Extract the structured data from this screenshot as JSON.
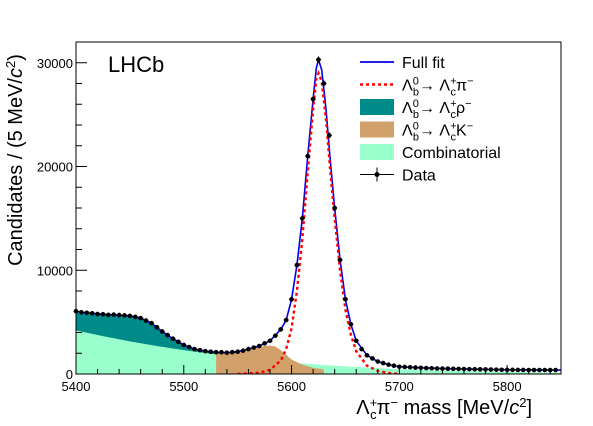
{
  "chart_data": {
    "type": "line",
    "title": "",
    "watermark": "LHCb",
    "xlabel": {
      "particle": "Λ",
      "particle_sup": "+",
      "particle_sub": "c",
      "pion": "π",
      "pion_sup": "−",
      "text": " mass [MeV/",
      "c": "c",
      "c_sup": "2",
      "close": "]"
    },
    "ylabel": {
      "text": "Candidates / (5 MeV/",
      "c": "c",
      "c_sup": "2",
      "close": ")"
    },
    "xlim": [
      5400,
      5850
    ],
    "ylim": [
      0,
      32000
    ],
    "x_ticks": [
      5400,
      5500,
      5600,
      5700,
      5800
    ],
    "y_ticks": [
      0,
      10000,
      20000,
      30000
    ],
    "x_tick_labels": [
      "5400",
      "5500",
      "5600",
      "5700",
      "5800"
    ],
    "y_tick_labels": [
      "0",
      "10000",
      "20000",
      "30000"
    ],
    "legend_position": "top-right",
    "legend": [
      {
        "id": "fullfit",
        "style": "line",
        "color": "#0000ee",
        "html": "Full fit"
      },
      {
        "id": "signal",
        "style": "dashed",
        "color": "#ff0000",
        "html": "Λ<tspan dy='-6' font-size='11'>0</tspan><tspan dx='-6' dy='11' font-size='11'>b</tspan><tspan dy='-5'>→ Λ</tspan><tspan dy='-6' font-size='11'>+</tspan><tspan dx='-6' dy='11' font-size='11'>c</tspan><tspan dy='-5'>π</tspan><tspan dy='-6' font-size='11'>−</tspan>"
      },
      {
        "id": "rho",
        "style": "box",
        "color": "#008b8b",
        "html": "Λ<tspan dy='-6' font-size='11'>0</tspan><tspan dx='-6' dy='11' font-size='11'>b</tspan><tspan dy='-5'>→ Λ</tspan><tspan dy='-6' font-size='11'>+</tspan><tspan dx='-6' dy='11' font-size='11'>c</tspan><tspan dy='-5'>ρ</tspan><tspan dy='-6' font-size='11'>−</tspan>"
      },
      {
        "id": "kaon",
        "style": "box",
        "color": "#d2a06a",
        "html": "Λ<tspan dy='-6' font-size='11'>0</tspan><tspan dx='-6' dy='11' font-size='11'>b</tspan><tspan dy='-5'>→ Λ</tspan><tspan dy='-6' font-size='11'>+</tspan><tspan dx='-6' dy='11' font-size='11'>c</tspan><tspan dy='-5'>K</tspan><tspan dy='-6' font-size='11'>−</tspan>"
      },
      {
        "id": "comb",
        "style": "box",
        "color": "#99ffcc",
        "html": "Combinatorial"
      },
      {
        "id": "data",
        "style": "marker",
        "color": "#000000",
        "html": "Data"
      }
    ],
    "series": [
      {
        "id": "combinatorial",
        "type": "area",
        "color": "#99ffcc",
        "x": [
          5400,
          5425,
          5450,
          5475,
          5500,
          5525,
          5550,
          5575,
          5600,
          5625,
          5650,
          5675,
          5700,
          5750,
          5800,
          5850
        ],
        "y": [
          4200,
          3650,
          3150,
          2700,
          2300,
          1950,
          1620,
          1340,
          1100,
          900,
          730,
          590,
          470,
          300,
          190,
          120
        ]
      },
      {
        "id": "rho_total",
        "type": "area",
        "color": "#008b8b",
        "x": [
          5400,
          5410,
          5420,
          5430,
          5440,
          5450,
          5460,
          5470,
          5480,
          5490,
          5500,
          5510,
          5520,
          5530,
          5540,
          5550
        ],
        "y": [
          5950,
          5900,
          5800,
          5720,
          5680,
          5600,
          5400,
          4900,
          4100,
          3400,
          2800,
          2400,
          2200,
          2050,
          1950,
          1800
        ]
      },
      {
        "id": "kaon_total",
        "type": "area",
        "color": "#d2a06a",
        "x": [
          5530,
          5540,
          5550,
          5560,
          5570,
          5575,
          5580,
          5585,
          5590,
          5595,
          5600,
          5610,
          5620,
          5630
        ],
        "y": [
          1950,
          2000,
          2100,
          2350,
          2600,
          2700,
          2750,
          2650,
          2300,
          1850,
          1400,
          900,
          600,
          450
        ]
      },
      {
        "id": "signal",
        "type": "dashed",
        "color": "#ff0000",
        "x": [
          5550,
          5570,
          5580,
          5590,
          5595,
          5600,
          5605,
          5610,
          5615,
          5620,
          5623,
          5625,
          5628,
          5632,
          5636,
          5640,
          5645,
          5650,
          5655,
          5660,
          5670,
          5680,
          5690,
          5700
        ],
        "y": [
          0,
          120,
          400,
          1300,
          2400,
          4400,
          8000,
          13000,
          19500,
          25500,
          28500,
          29000,
          28200,
          24500,
          19500,
          15000,
          10000,
          6200,
          3800,
          2200,
          800,
          300,
          100,
          0
        ]
      },
      {
        "id": "fullfit",
        "type": "line",
        "color": "#0000ee",
        "x": [
          5400,
          5410,
          5420,
          5430,
          5440,
          5450,
          5460,
          5470,
          5480,
          5490,
          5500,
          5510,
          5520,
          5530,
          5540,
          5550,
          5560,
          5570,
          5580,
          5590,
          5595,
          5600,
          5605,
          5610,
          5615,
          5620,
          5623,
          5625,
          5628,
          5632,
          5636,
          5640,
          5645,
          5650,
          5655,
          5660,
          5670,
          5680,
          5690,
          5700,
          5720,
          5750,
          5800,
          5850
        ],
        "y": [
          6000,
          5900,
          5800,
          5720,
          5680,
          5600,
          5400,
          4900,
          4100,
          3400,
          2800,
          2400,
          2200,
          2100,
          2050,
          2150,
          2400,
          2700,
          3200,
          4300,
          5200,
          7200,
          10500,
          15000,
          21000,
          26500,
          29500,
          30300,
          29300,
          25500,
          20500,
          16000,
          11000,
          7200,
          4800,
          3200,
          1800,
          1200,
          900,
          700,
          600,
          500,
          400,
          380
        ]
      },
      {
        "id": "data",
        "type": "scatter",
        "color": "#000000",
        "x": [
          5400,
          5405,
          5410,
          5415,
          5420,
          5425,
          5430,
          5435,
          5440,
          5445,
          5450,
          5455,
          5460,
          5465,
          5470,
          5475,
          5480,
          5485,
          5490,
          5495,
          5500,
          5505,
          5510,
          5515,
          5520,
          5525,
          5530,
          5535,
          5540,
          5545,
          5550,
          5555,
          5560,
          5565,
          5570,
          5575,
          5580,
          5585,
          5590,
          5595,
          5600,
          5605,
          5610,
          5615,
          5620,
          5625,
          5630,
          5635,
          5640,
          5645,
          5650,
          5655,
          5660,
          5665,
          5670,
          5675,
          5680,
          5685,
          5690,
          5695,
          5700,
          5705,
          5710,
          5715,
          5720,
          5725,
          5730,
          5735,
          5740,
          5745,
          5750,
          5755,
          5760,
          5765,
          5770,
          5775,
          5780,
          5785,
          5790,
          5795,
          5800,
          5805,
          5810,
          5815,
          5820,
          5825,
          5830,
          5835,
          5840,
          5845
        ],
        "y": [
          6050,
          5950,
          5900,
          5850,
          5780,
          5760,
          5700,
          5720,
          5680,
          5650,
          5600,
          5500,
          5380,
          5150,
          4900,
          4500,
          4100,
          3750,
          3400,
          3100,
          2800,
          2600,
          2400,
          2300,
          2200,
          2150,
          2100,
          2100,
          2050,
          2100,
          2150,
          2250,
          2400,
          2550,
          2700,
          2950,
          3200,
          3700,
          4300,
          5200,
          7200,
          10500,
          15000,
          21000,
          26500,
          30300,
          28000,
          23000,
          16000,
          11000,
          7200,
          4800,
          3200,
          2400,
          1800,
          1500,
          1200,
          1050,
          900,
          800,
          700,
          680,
          650,
          620,
          600,
          570,
          550,
          530,
          520,
          510,
          500,
          490,
          480,
          470,
          460,
          450,
          440,
          430,
          420,
          410,
          400,
          400,
          390,
          390,
          380,
          380,
          380,
          380,
          380,
          380
        ]
      }
    ]
  }
}
